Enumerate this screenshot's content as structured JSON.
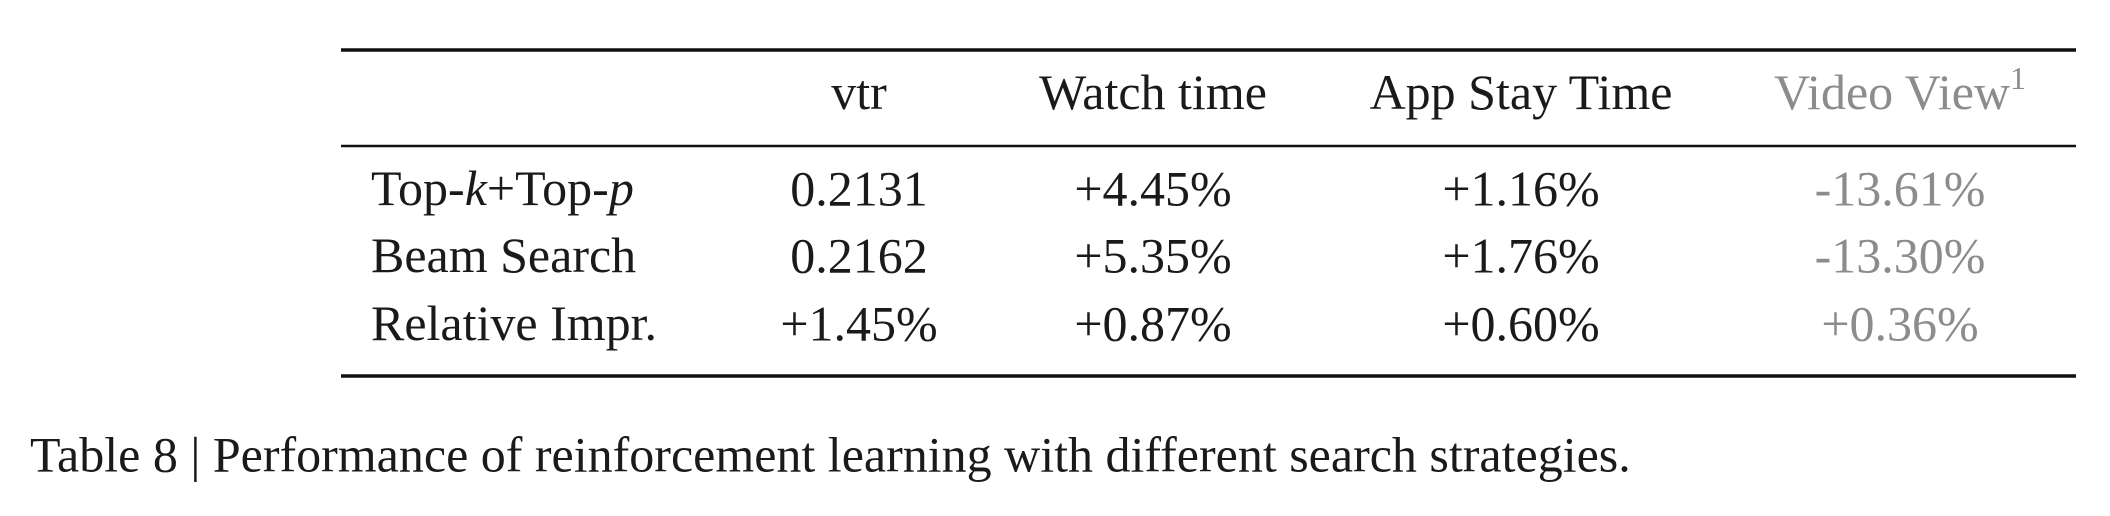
{
  "table": {
    "header": [
      "vtr",
      "Watch time",
      "App Stay Time",
      "Video View"
    ],
    "header_footnote_mark": "1",
    "rows": [
      {
        "label": [
          {
            "text": "Top-"
          },
          {
            "text": "k",
            "italic": true
          },
          {
            "text": "+Top-"
          },
          {
            "text": "p",
            "italic": true
          }
        ],
        "cells": [
          "0.2131",
          "+4.45%",
          "+1.16%",
          "-13.61%"
        ]
      },
      {
        "label": [
          {
            "text": "Beam Search"
          }
        ],
        "cells": [
          "0.2162",
          "+5.35%",
          "+1.76%",
          "-13.30%"
        ]
      },
      {
        "label": [
          {
            "text": "Relative Impr."
          }
        ],
        "cells": [
          "+1.45%",
          "+0.87%",
          "+0.60%",
          "+0.36%"
        ]
      }
    ]
  },
  "caption": "Table 8 | Performance of reinforcement learning with different search strategies."
}
